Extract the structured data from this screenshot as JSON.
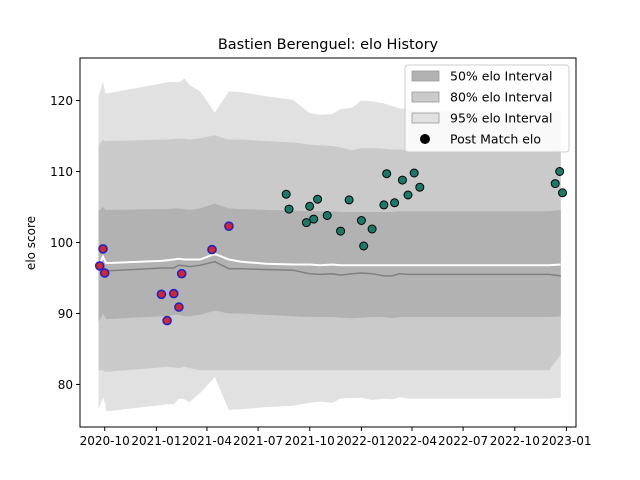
{
  "chart_data": {
    "type": "scatter",
    "title": "Bastien Berenguel: elo History",
    "xlabel": "",
    "ylabel": "elo score",
    "ylim": [
      74,
      126
    ],
    "xlim": [
      "2020-08-18",
      "2023-01-18"
    ],
    "grid": false,
    "legend_placement": "top-right",
    "y_ticks": [
      80,
      90,
      100,
      110,
      120
    ],
    "x_ticks": [
      {
        "date": "2020-10-01",
        "label": "2020-10"
      },
      {
        "date": "2021-01-01",
        "label": "2021-01"
      },
      {
        "date": "2021-04-01",
        "label": "2021-04"
      },
      {
        "date": "2021-07-01",
        "label": "2021-07"
      },
      {
        "date": "2021-10-01",
        "label": "2021-10"
      },
      {
        "date": "2022-01-01",
        "label": "2022-01"
      },
      {
        "date": "2022-04-01",
        "label": "2022-04"
      },
      {
        "date": "2022-07-01",
        "label": "2022-07"
      },
      {
        "date": "2022-10-01",
        "label": "2022-10"
      },
      {
        "date": "2023-01-01",
        "label": "2023-01"
      }
    ],
    "legend": [
      {
        "label": "50% elo Interval",
        "kind": "band",
        "color": "#b2b2b2"
      },
      {
        "label": "80% elo Interval",
        "kind": "band",
        "color": "#cacaca"
      },
      {
        "label": "95% elo Interval",
        "kind": "band",
        "color": "#e1e1e1"
      },
      {
        "label": "Post Match elo",
        "kind": "marker",
        "color": "#000000"
      }
    ],
    "colors": {
      "band_95": "#e1e1e1",
      "band_80": "#cacaca",
      "band_50": "#b2b2b2",
      "median_line": "#808080",
      "mean_line": "#ffffff",
      "point_early_fill": "#d62728",
      "point_early_edge": "#2222cc",
      "point_late_fill": "#1a7a6a",
      "point_late_edge": "#000000"
    },
    "intervals": {
      "dates": [
        "2020-09-20",
        "2020-09-28",
        "2020-10-02",
        "2020-10-04",
        "2021-01-10",
        "2021-01-20",
        "2021-02-01",
        "2021-02-10",
        "2021-02-20",
        "2021-03-01",
        "2021-03-20",
        "2021-04-15",
        "2021-05-10",
        "2021-06-01",
        "2021-07-15",
        "2021-09-01",
        "2021-10-01",
        "2021-10-20",
        "2021-11-10",
        "2021-11-25",
        "2021-12-15",
        "2022-01-01",
        "2022-01-20",
        "2022-02-10",
        "2022-02-25",
        "2022-03-10",
        "2022-03-25",
        "2022-04-10",
        "2022-05-01",
        "2022-12-01",
        "2022-12-22"
      ],
      "p95_low": [
        76.5,
        78.2,
        77.3,
        76.2,
        77.1,
        77.2,
        77.2,
        78.0,
        77.9,
        77.5,
        78.8,
        81.0,
        76.4,
        76.5,
        76.8,
        77.0,
        77.4,
        77.6,
        77.4,
        78.0,
        78.1,
        78.1,
        77.8,
        78.0,
        77.9,
        78.2,
        78.0,
        78.0,
        78.0,
        78.0,
        78.1
      ],
      "p80_low": [
        82.0,
        82.0,
        81.8,
        81.8,
        82.4,
        82.5,
        82.4,
        82.3,
        82.5,
        82.3,
        82.0,
        82.0,
        82.0,
        82.0,
        82.0,
        82.0,
        82.0,
        82.0,
        82.0,
        82.0,
        82.0,
        82.0,
        82.0,
        82.0,
        82.0,
        82.0,
        82.0,
        82.0,
        82.0,
        82.0,
        84.2
      ],
      "p50_low": [
        88.8,
        90.0,
        89.4,
        89.2,
        89.6,
        89.6,
        89.8,
        89.8,
        89.6,
        89.6,
        89.8,
        90.4,
        90.0,
        90.0,
        89.8,
        89.6,
        89.5,
        89.5,
        89.5,
        89.4,
        89.3,
        89.4,
        89.5,
        89.5,
        89.3,
        89.5,
        89.5,
        89.5,
        89.5,
        89.5,
        89.6
      ],
      "median": [
        96.6,
        96.8,
        96.0,
        96.0,
        96.4,
        96.4,
        96.4,
        96.8,
        96.7,
        96.6,
        96.8,
        97.3,
        96.3,
        96.3,
        96.2,
        96.1,
        95.6,
        95.5,
        95.6,
        95.4,
        95.6,
        95.7,
        95.6,
        95.3,
        95.3,
        95.6,
        95.5,
        95.5,
        95.5,
        95.5,
        95.3
      ],
      "mean": [
        96.6,
        98.0,
        97.3,
        97.1,
        97.4,
        97.5,
        97.6,
        97.7,
        97.6,
        97.6,
        97.6,
        98.4,
        97.6,
        97.3,
        97.0,
        96.9,
        96.9,
        96.8,
        96.9,
        96.8,
        96.8,
        96.8,
        96.8,
        96.8,
        96.8,
        96.8,
        96.8,
        96.8,
        96.8,
        96.8,
        96.9
      ],
      "p50_high": [
        104.4,
        105.0,
        104.6,
        104.6,
        104.7,
        104.7,
        104.8,
        104.8,
        104.7,
        104.6,
        104.8,
        105.5,
        104.8,
        104.7,
        104.6,
        104.5,
        104.4,
        104.4,
        104.4,
        104.3,
        104.3,
        104.3,
        104.3,
        104.3,
        104.3,
        104.4,
        104.4,
        104.4,
        104.4,
        104.4,
        104.6
      ],
      "p80_high": [
        113.6,
        114.5,
        114.2,
        114.3,
        114.5,
        114.5,
        114.6,
        114.6,
        114.6,
        114.5,
        114.7,
        115.1,
        114.5,
        114.5,
        114.3,
        114.1,
        113.8,
        113.7,
        113.6,
        113.4,
        113.0,
        113.3,
        113.3,
        113.2,
        113.1,
        113.1,
        113.0,
        113.0,
        113.0,
        113.0,
        113.1
      ],
      "p95_high": [
        120.5,
        122.7,
        121.1,
        121.0,
        122.4,
        122.6,
        122.6,
        122.6,
        123.1,
        122.2,
        121.3,
        118.3,
        121.3,
        121.2,
        120.6,
        120.1,
        118.2,
        118.0,
        118.1,
        118.8,
        119.0,
        120.0,
        119.9,
        119.6,
        119.2,
        118.9,
        118.8,
        118.5,
        118.5,
        118.5,
        118.7
      ]
    },
    "series": [
      {
        "points": [
          [
            "2020-09-22",
            96.7
          ],
          [
            "2020-09-28",
            99.1
          ],
          [
            "2020-10-01",
            95.7
          ],
          [
            "2021-01-10",
            92.7
          ],
          [
            "2021-01-20",
            89.0
          ],
          [
            "2021-02-01",
            92.8
          ],
          [
            "2021-02-10",
            90.9
          ],
          [
            "2021-02-15",
            95.6
          ],
          [
            "2021-04-10",
            99.0
          ],
          [
            "2021-05-10",
            102.3
          ]
        ]
      },
      {
        "points": [
          [
            "2021-08-20",
            106.8
          ],
          [
            "2021-08-25",
            104.7
          ],
          [
            "2021-09-25",
            102.8
          ],
          [
            "2021-10-01",
            105.1
          ],
          [
            "2021-10-08",
            103.3
          ],
          [
            "2021-10-15",
            106.1
          ],
          [
            "2021-11-01",
            103.8
          ],
          [
            "2021-11-25",
            101.6
          ],
          [
            "2021-12-10",
            106.0
          ],
          [
            "2022-01-01",
            103.1
          ],
          [
            "2022-01-05",
            99.5
          ],
          [
            "2022-01-20",
            101.9
          ],
          [
            "2022-02-10",
            105.3
          ],
          [
            "2022-02-15",
            109.7
          ],
          [
            "2022-03-01",
            105.6
          ],
          [
            "2022-03-15",
            108.8
          ],
          [
            "2022-03-25",
            106.7
          ],
          [
            "2022-04-05",
            109.8
          ],
          [
            "2022-04-15",
            107.8
          ],
          [
            "2022-12-12",
            108.3
          ],
          [
            "2022-12-20",
            110.0
          ],
          [
            "2022-12-25",
            107.0
          ]
        ]
      }
    ]
  }
}
